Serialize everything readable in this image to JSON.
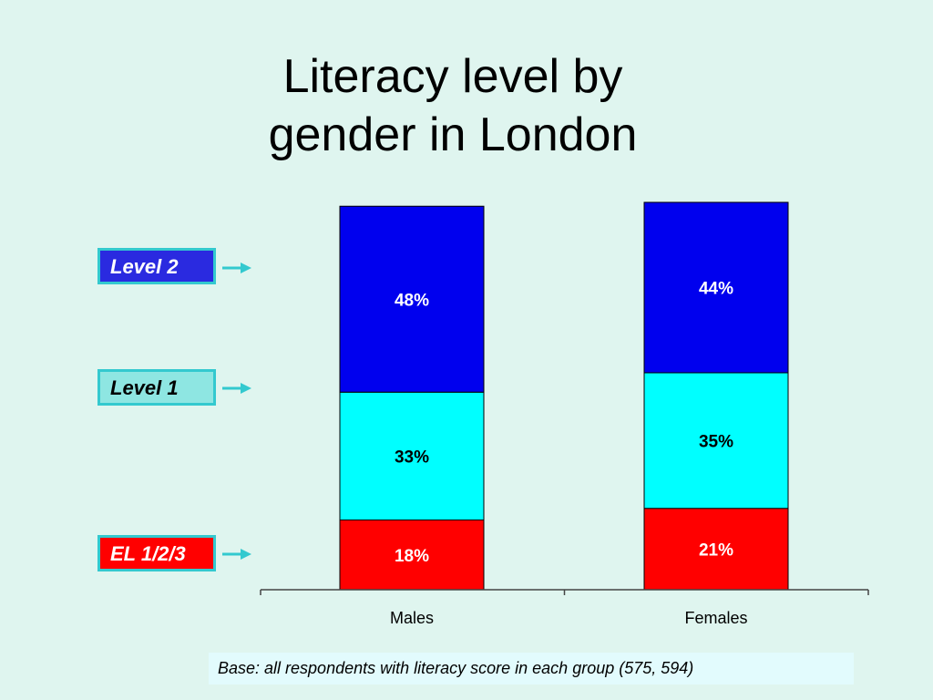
{
  "title_lines": [
    "Literacy level by",
    "gender in London"
  ],
  "footnote": "Base: all respondents with literacy score in each group (575, 594)",
  "legend": [
    {
      "label": "Level 2",
      "color": "#2a2ae0",
      "text_color": "#ffffff"
    },
    {
      "label": "Level 1",
      "color": "#8ee6e2",
      "text_color": "#000000"
    },
    {
      "label": "EL 1/2/3",
      "color": "#ff0000",
      "text_color": "#ffffff"
    }
  ],
  "chart_data": {
    "type": "bar",
    "stacked": true,
    "categories": [
      "Males",
      "Females"
    ],
    "series": [
      {
        "name": "EL 1/2/3",
        "values": [
          18,
          21
        ],
        "labels": [
          "18%",
          "21%"
        ],
        "color": "#ff0000",
        "label_color": "#ffffff"
      },
      {
        "name": "Level 1",
        "values": [
          33,
          35
        ],
        "labels": [
          "33%",
          "35%"
        ],
        "color": "#00ffff",
        "label_color": "#000000"
      },
      {
        "name": "Level 2",
        "values": [
          48,
          44
        ],
        "labels": [
          "48%",
          "44%"
        ],
        "color": "#0000ee",
        "label_color": "#ffffff"
      }
    ],
    "ylim": [
      0,
      100
    ],
    "grid": false
  }
}
